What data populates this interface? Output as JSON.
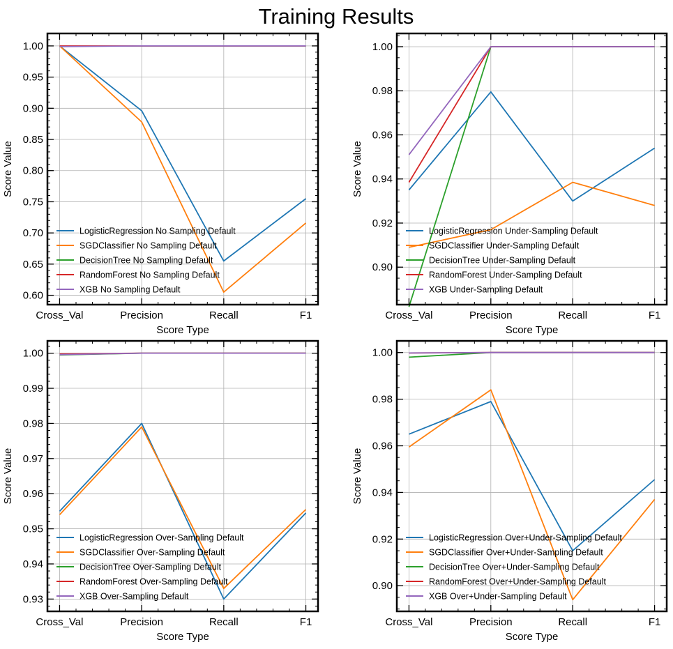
{
  "title": "Training Results",
  "colors": {
    "LogisticRegression": "#1f77b4",
    "SGDClassifier": "#ff7f0e",
    "DecisionTree": "#2ca02c",
    "RandomForest": "#d62728",
    "XGB": "#9467bd"
  },
  "chart_data": [
    {
      "type": "line",
      "categories": [
        "Cross_Val",
        "Precision",
        "Recall",
        "F1"
      ],
      "xlabel": "Score Type",
      "ylabel": "Score Value",
      "ylim": [
        0.585,
        1.02
      ],
      "yticks": [
        0.6,
        0.65,
        0.7,
        0.75,
        0.8,
        0.85,
        0.9,
        0.95,
        1.0
      ],
      "yminor": 0.01,
      "ydecimals": 2,
      "grid": true,
      "legend": "lower-left",
      "series": [
        {
          "name": "LogisticRegression No Sampling Default",
          "model": "LogisticRegression",
          "values": [
            1.0,
            0.896,
            0.655,
            0.755
          ]
        },
        {
          "name": "SGDClassifier No Sampling Default",
          "model": "SGDClassifier",
          "values": [
            1.0,
            0.878,
            0.605,
            0.716
          ]
        },
        {
          "name": "DecisionTree No Sampling Default",
          "model": "DecisionTree",
          "values": [
            1.0,
            1.0,
            1.0,
            1.0
          ]
        },
        {
          "name": "RandomForest No Sampling Default",
          "model": "RandomForest",
          "values": [
            1.0,
            1.0,
            1.0,
            1.0
          ]
        },
        {
          "name": "XGB No Sampling Default",
          "model": "XGB",
          "values": [
            0.999,
            1.0,
            1.0,
            1.0
          ]
        }
      ]
    },
    {
      "type": "line",
      "categories": [
        "Cross_Val",
        "Precision",
        "Recall",
        "F1"
      ],
      "xlabel": "Score Type",
      "ylabel": "Score Value",
      "ylim": [
        0.883,
        1.006
      ],
      "yticks": [
        0.9,
        0.92,
        0.94,
        0.96,
        0.98,
        1.0
      ],
      "yminor": 0.005,
      "ydecimals": 2,
      "grid": true,
      "legend": "lower-left",
      "series": [
        {
          "name": "LogisticRegression Under-Sampling Default",
          "model": "LogisticRegression",
          "values": [
            0.935,
            0.9795,
            0.93,
            0.954
          ]
        },
        {
          "name": "SGDClassifier Under-Sampling Default",
          "model": "SGDClassifier",
          "values": [
            0.909,
            0.917,
            0.9385,
            0.928
          ]
        },
        {
          "name": "DecisionTree Under-Sampling Default",
          "model": "DecisionTree",
          "values": [
            0.882,
            1.0,
            1.0,
            1.0
          ]
        },
        {
          "name": "RandomForest Under-Sampling Default",
          "model": "RandomForest",
          "values": [
            0.9385,
            1.0,
            1.0,
            1.0
          ]
        },
        {
          "name": "XGB Under-Sampling Default",
          "model": "XGB",
          "values": [
            0.951,
            1.0,
            1.0,
            1.0
          ]
        }
      ]
    },
    {
      "type": "line",
      "categories": [
        "Cross_Val",
        "Precision",
        "Recall",
        "F1"
      ],
      "xlabel": "Score Type",
      "ylabel": "Score Value",
      "ylim": [
        0.9265,
        1.0035
      ],
      "yticks": [
        0.93,
        0.94,
        0.95,
        0.96,
        0.97,
        0.98,
        0.99,
        1.0
      ],
      "yminor": 0.002,
      "ydecimals": 2,
      "grid": true,
      "legend": "lower-left",
      "series": [
        {
          "name": "LogisticRegression Over-Sampling Default",
          "model": "LogisticRegression",
          "values": [
            0.955,
            0.98,
            0.93,
            0.9545
          ]
        },
        {
          "name": "SGDClassifier Over-Sampling Default",
          "model": "SGDClassifier",
          "values": [
            0.954,
            0.979,
            0.933,
            0.9555
          ]
        },
        {
          "name": "DecisionTree Over-Sampling Default",
          "model": "DecisionTree",
          "values": [
            0.9995,
            1.0,
            1.0,
            1.0
          ]
        },
        {
          "name": "RandomForest Over-Sampling Default",
          "model": "RandomForest",
          "values": [
            0.9998,
            1.0,
            1.0,
            1.0
          ]
        },
        {
          "name": "XGB Over-Sampling Default",
          "model": "XGB",
          "values": [
            0.9996,
            1.0,
            1.0,
            1.0
          ]
        }
      ]
    },
    {
      "type": "line",
      "categories": [
        "Cross_Val",
        "Precision",
        "Recall",
        "F1"
      ],
      "xlabel": "Score Type",
      "ylabel": "Score Value",
      "ylim": [
        0.889,
        1.005
      ],
      "yticks": [
        0.9,
        0.92,
        0.94,
        0.96,
        0.98,
        1.0
      ],
      "yminor": 0.005,
      "ydecimals": 2,
      "grid": true,
      "legend": "lower-left",
      "series": [
        {
          "name": "LogisticRegression Over+Under-Sampling Default",
          "model": "LogisticRegression",
          "values": [
            0.965,
            0.979,
            0.915,
            0.9455
          ]
        },
        {
          "name": "SGDClassifier Over+Under-Sampling Default",
          "model": "SGDClassifier",
          "values": [
            0.9595,
            0.984,
            0.894,
            0.937
          ]
        },
        {
          "name": "DecisionTree Over+Under-Sampling Default",
          "model": "DecisionTree",
          "values": [
            0.998,
            1.0,
            1.0,
            1.0
          ]
        },
        {
          "name": "RandomForest Over+Under-Sampling Default",
          "model": "RandomForest",
          "values": [
            0.9998,
            1.0,
            1.0,
            1.0
          ]
        },
        {
          "name": "XGB Over+Under-Sampling Default",
          "model": "XGB",
          "values": [
            0.9998,
            1.0,
            1.0,
            1.0
          ]
        }
      ]
    }
  ]
}
